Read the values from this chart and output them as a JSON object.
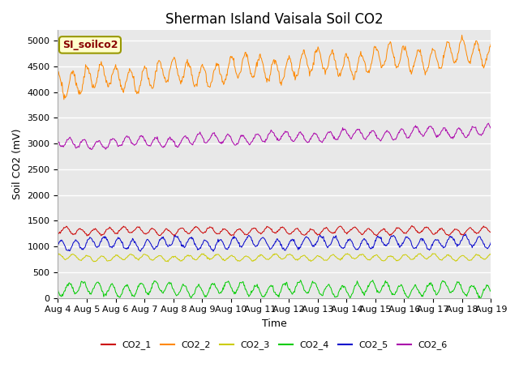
{
  "title": "Sherman Island Vaisala Soil CO2",
  "xlabel": "Time",
  "ylabel": "Soil CO2 (mV)",
  "legend_label": "SI_soilco2",
  "x_tick_labels": [
    "Aug 4",
    "Aug 5",
    "Aug 6",
    "Aug 7",
    "Aug 8",
    "Aug 9",
    "Aug 10",
    "Aug 11",
    "Aug 12",
    "Aug 13",
    "Aug 14",
    "Aug 15",
    "Aug 16",
    "Aug 17",
    "Aug 18",
    "Aug 19"
  ],
  "ylim": [
    0,
    5200
  ],
  "yticks": [
    0,
    500,
    1000,
    1500,
    2000,
    2500,
    3000,
    3500,
    4000,
    4500,
    5000
  ],
  "series_names": [
    "CO2_1",
    "CO2_2",
    "CO2_3",
    "CO2_4",
    "CO2_5",
    "CO2_6"
  ],
  "series_colors": [
    "#cc0000",
    "#ff8800",
    "#cccc00",
    "#00cc00",
    "#0000cc",
    "#aa00aa"
  ],
  "series_bases": [
    1300,
    4200,
    780,
    170,
    1050,
    2980
  ],
  "series_amps": [
    60,
    220,
    50,
    110,
    100,
    90
  ],
  "series_trends": [
    0.0,
    2.5,
    0.05,
    0.0,
    0.15,
    1.2
  ],
  "n_points": 720,
  "days": 15,
  "background_color": "#e8e8e8",
  "grid_color": "white",
  "title_fontsize": 12,
  "axis_label_fontsize": 9,
  "tick_fontsize": 8,
  "legend_box_facecolor": "#ffffcc",
  "legend_box_edgecolor": "#999900"
}
